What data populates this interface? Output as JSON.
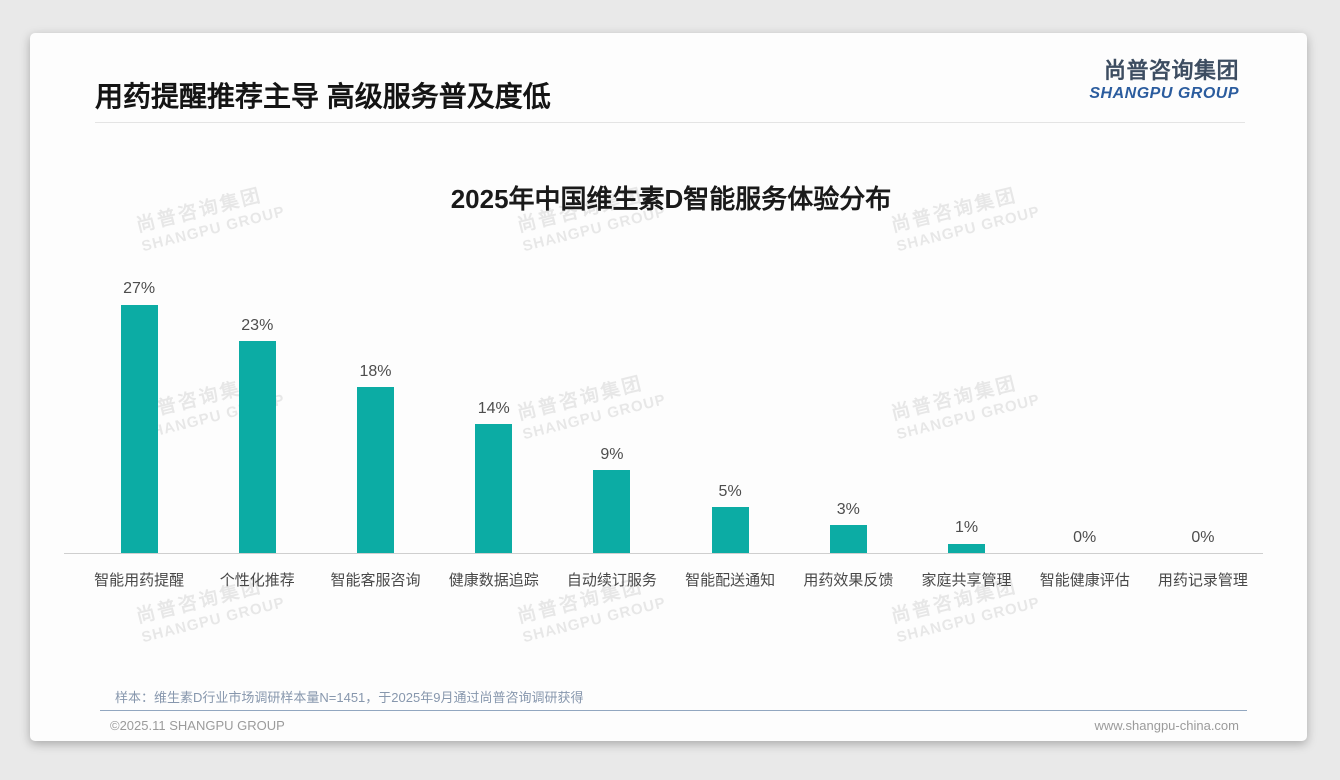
{
  "header": {
    "title": "用药提醒推荐主导 高级服务普及度低",
    "logo_cn": "尚普咨询集团",
    "logo_en": "SHANGPU GROUP"
  },
  "watermark": {
    "line1": "尚普咨询集团",
    "line2": "SHANGPU GROUP"
  },
  "chart_data": {
    "type": "bar",
    "title": "2025年中国维生素D智能服务体验分布",
    "categories": [
      "智能用药提醒",
      "个性化推荐",
      "智能客服咨询",
      "健康数据追踪",
      "自动续订服务",
      "智能配送通知",
      "用药效果反馈",
      "家庭共享管理",
      "智能健康评估",
      "用药记录管理"
    ],
    "values": [
      27,
      23,
      18,
      14,
      9,
      5,
      3,
      1,
      0,
      0
    ],
    "labels": [
      "27%",
      "23%",
      "18%",
      "14%",
      "9%",
      "5%",
      "3%",
      "1%",
      "0%",
      "0%"
    ],
    "unit": "%",
    "xlabel": "",
    "ylabel": "",
    "ylim": [
      0,
      30
    ],
    "grid": false,
    "legend": "none",
    "bar_color": "#0caca4"
  },
  "footer": {
    "note": "样本：维生素D行业市场调研样本量N=1451，于2025年9月通过尚普咨询调研获得",
    "copyright": "©2025.11 SHANGPU GROUP",
    "website": "www.shangpu-china.com"
  }
}
